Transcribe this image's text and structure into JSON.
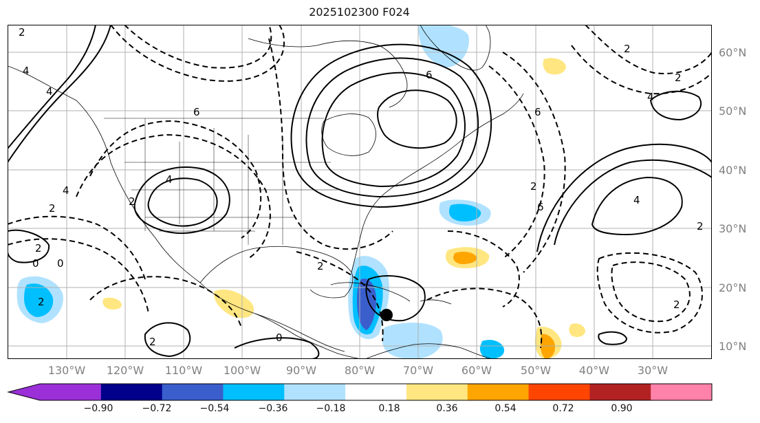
{
  "title": "2025102300 F024",
  "lat_labels": [
    "60°N",
    "50°N",
    "40°N",
    "30°N",
    "20°N",
    "10°N"
  ],
  "lon_labels": [
    "130°W",
    "120°W",
    "110°W",
    "100°W",
    "90°W",
    "80°W",
    "70°W",
    "60°W",
    "50°W",
    "40°W",
    "30°W"
  ],
  "colorbar": {
    "ticks": [
      "−0.90",
      "−0.72",
      "−0.54",
      "−0.36",
      "−0.18",
      "0.18",
      "0.36",
      "0.54",
      "0.72",
      "0.90"
    ],
    "colors": [
      "#9b30d9",
      "#00008b",
      "#3a5fcd",
      "#00bfff",
      "#b0e2ff",
      "#ffffff",
      "#ffe680",
      "#ffa500",
      "#ff4500",
      "#b22222",
      "#ff82ab"
    ]
  },
  "contour_labels": [
    "2",
    "4",
    "6",
    "2",
    "4",
    "6",
    "2",
    "4",
    "2",
    "6",
    "2",
    "4",
    "2",
    "0",
    "2",
    "0",
    "2",
    "0",
    "2",
    "4",
    "6",
    "2",
    "2",
    "4",
    "2"
  ],
  "colors": {
    "land_line": "#000000",
    "grid": "#b0b0b0",
    "contour": "#000000",
    "marker": "#000000"
  }
}
